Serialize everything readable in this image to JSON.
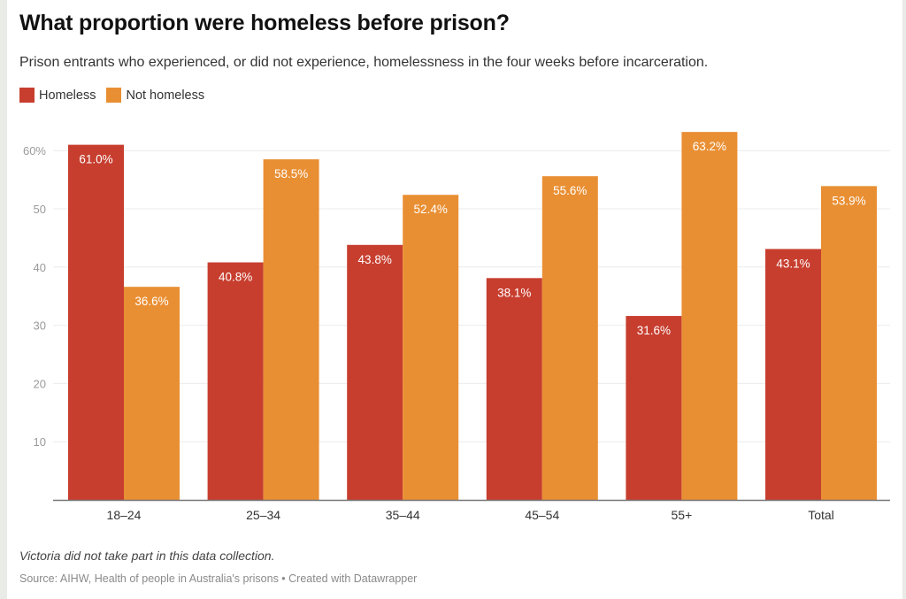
{
  "header": {
    "title": "What proportion were homeless before prison?",
    "subtitle": "Prison entrants who experienced, or did not experience, homelessness in the four weeks before incarceration."
  },
  "legend": [
    {
      "label": "Homeless",
      "color": "#c73e2f"
    },
    {
      "label": "Not homeless",
      "color": "#e98f33"
    }
  ],
  "footer": {
    "note": "Victoria did not take part in this data collection.",
    "source": "Source: AIHW, Health of people in Australia's prisons • Created with Datawrapper"
  },
  "chart_data": {
    "type": "bar",
    "title": "What proportion were homeless before prison?",
    "subtitle": "Prison entrants who experienced, or did not experience, homelessness in the four weeks before incarceration.",
    "xlabel": "",
    "ylabel": "",
    "categories": [
      "18–24",
      "25–34",
      "35–44",
      "45–54",
      "55+",
      "Total"
    ],
    "series": [
      {
        "name": "Homeless",
        "color": "#c73e2f",
        "values": [
          61.0,
          40.8,
          43.8,
          38.1,
          31.6,
          43.1
        ],
        "labels": [
          "61.0%",
          "40.8%",
          "43.8%",
          "38.1%",
          "31.6%",
          "43.1%"
        ]
      },
      {
        "name": "Not homeless",
        "color": "#e98f33",
        "values": [
          36.6,
          58.5,
          52.4,
          55.6,
          63.2,
          53.9
        ],
        "labels": [
          "36.6%",
          "58.5%",
          "52.4%",
          "55.6%",
          "63.2%",
          "53.9%"
        ]
      }
    ],
    "yticks": [
      10,
      20,
      30,
      40,
      50,
      60
    ],
    "ytick_labels": [
      "10",
      "20",
      "30",
      "40",
      "50",
      "60%"
    ],
    "ylim": [
      0,
      63.2
    ],
    "grid": true,
    "legend_position": "top-left"
  }
}
